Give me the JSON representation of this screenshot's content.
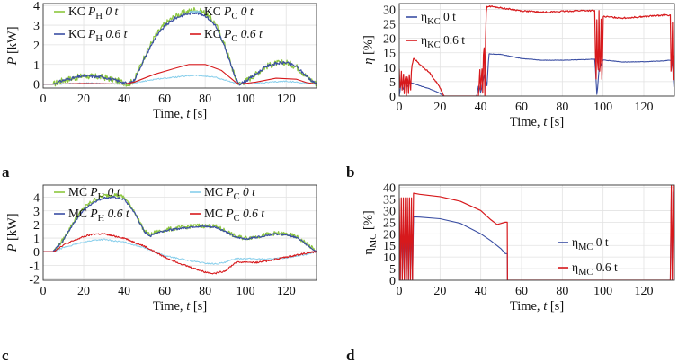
{
  "panels": [
    "a",
    "b",
    "c",
    "d"
  ],
  "chart_data": [
    {
      "id": "a",
      "type": "line",
      "title": "",
      "xlabel": "Time, t [s]",
      "ylabel": "P [kW]",
      "xlim": [
        0,
        135
      ],
      "ylim": [
        -0.2,
        4.1
      ],
      "xticks": [
        0,
        20,
        40,
        60,
        80,
        100,
        120
      ],
      "yticks": [
        0,
        1,
        2,
        3,
        4
      ],
      "grid": true,
      "legend_position": "top",
      "series": [
        {
          "name": "P_H 0 t",
          "legend": {
            "pre": "KC P",
            "sub": "H",
            "post": " 0 t"
          },
          "color": "#8cc63e",
          "width": 1.2,
          "noise": 0.16,
          "x": [
            0,
            5,
            10,
            20,
            30,
            40,
            42,
            45,
            50,
            55,
            60,
            65,
            70,
            75,
            80,
            85,
            90,
            95,
            97,
            100,
            105,
            110,
            115,
            120,
            125,
            130,
            135
          ],
          "y": [
            0,
            0,
            0.2,
            0.42,
            0.35,
            0.08,
            0,
            0.2,
            1.4,
            2.4,
            3.05,
            3.45,
            3.65,
            3.8,
            3.62,
            3.1,
            1.9,
            0.3,
            0,
            0.15,
            0.5,
            0.9,
            1.05,
            1.1,
            0.9,
            0.4,
            0
          ]
        },
        {
          "name": "P_C 0 t",
          "legend": {
            "pre": "KC P",
            "sub": "C",
            "post": " 0 t"
          },
          "color": "#87ceeb",
          "width": 1.0,
          "noise": 0.03,
          "x": [
            0,
            5,
            20,
            40,
            45,
            55,
            65,
            75,
            85,
            95,
            100,
            110,
            120,
            130,
            135
          ],
          "y": [
            0,
            0,
            0.05,
            0,
            0.05,
            0.25,
            0.35,
            0.45,
            0.35,
            0.05,
            0,
            0.08,
            0.15,
            0.05,
            0
          ]
        },
        {
          "name": "P_H 0.6 t",
          "legend": {
            "pre": "KC P",
            "sub": "H",
            "post": " 0.6 t"
          },
          "color": "#3a4ea3",
          "width": 1.2,
          "noise": 0.07,
          "x": [
            0,
            5,
            10,
            20,
            30,
            40,
            42,
            45,
            50,
            55,
            60,
            65,
            70,
            75,
            80,
            85,
            90,
            95,
            97,
            100,
            105,
            110,
            115,
            120,
            125,
            130,
            135
          ],
          "y": [
            0,
            0,
            0.2,
            0.42,
            0.35,
            0.08,
            0,
            0.2,
            1.3,
            2.3,
            2.95,
            3.35,
            3.55,
            3.65,
            3.5,
            3.0,
            1.8,
            0.3,
            0,
            0.15,
            0.5,
            0.9,
            1.05,
            1.1,
            0.9,
            0.4,
            0
          ]
        },
        {
          "name": "P_C 0.6 t",
          "legend": {
            "pre": "KC P",
            "sub": "C",
            "post": " 0.6 t"
          },
          "color": "#d7191c",
          "width": 1.1,
          "noise": 0,
          "x": [
            0,
            5,
            20,
            40,
            45,
            55,
            65,
            72,
            80,
            88,
            95,
            97,
            105,
            115,
            125,
            130,
            135
          ],
          "y": [
            0,
            0,
            0.03,
            0,
            0.1,
            0.5,
            0.8,
            1.0,
            1.0,
            0.7,
            0.1,
            0,
            0.1,
            0.3,
            0.25,
            0.08,
            0
          ]
        }
      ]
    },
    {
      "id": "b",
      "type": "line",
      "title": "",
      "xlabel": "Time, t [s]",
      "ylabel": "η [%]",
      "xlim": [
        0,
        135
      ],
      "ylim": [
        0,
        32
      ],
      "xticks": [
        0,
        20,
        40,
        60,
        80,
        100,
        120
      ],
      "yticks": [
        0,
        5,
        10,
        15,
        20,
        25,
        30
      ],
      "grid": true,
      "legend_position": "top-left",
      "series": [
        {
          "name": "η_KC 0 t",
          "legend": {
            "pre": "η",
            "sub": "KC",
            "post": " 0 t"
          },
          "color": "#3a4ea3",
          "width": 1.1,
          "noise": 0.08,
          "x": [
            0,
            1,
            2,
            3,
            4,
            5,
            6,
            7,
            10,
            15,
            20,
            21,
            22,
            22.1,
            38,
            39,
            40,
            41,
            42,
            43,
            44,
            50,
            60,
            70,
            80,
            90,
            96,
            97,
            98,
            99,
            100,
            110,
            120,
            130,
            134,
            135
          ],
          "y": [
            0,
            5,
            2,
            6,
            3,
            5,
            4.5,
            4.4,
            3.6,
            2.5,
            1,
            0.3,
            0,
            0,
            0,
            4,
            1,
            5,
            8,
            3,
            14.6,
            14.4,
            13,
            12.4,
            12.4,
            12.6,
            12.8,
            0,
            9,
            11,
            12.5,
            11.8,
            11.9,
            12.2,
            12.5,
            0
          ]
        },
        {
          "name": "η_KC 0.6 t",
          "legend": {
            "pre": "η",
            "sub": "KC",
            "post": " 0.6 t"
          },
          "color": "#d7191c",
          "width": 1.2,
          "noise": 0.25,
          "x": [
            0,
            0.5,
            1,
            1.5,
            2,
            2.5,
            3,
            3.5,
            4,
            4.5,
            5,
            5.5,
            6,
            7,
            8,
            10,
            15,
            20,
            22,
            22.1,
            39,
            39.5,
            40,
            40.5,
            41,
            41.5,
            42,
            42.5,
            43,
            45,
            50,
            60,
            70,
            80,
            90,
            96,
            96.5,
            97,
            97.5,
            98,
            98.5,
            99,
            99.5,
            100,
            110,
            120,
            130,
            133,
            133.5,
            134,
            134.5,
            135
          ],
          "y": [
            9.5,
            0,
            9.5,
            0,
            9.5,
            0,
            9.5,
            0,
            9.5,
            0,
            9.5,
            0,
            9.5,
            13,
            12.5,
            11,
            8,
            3,
            0,
            0,
            0,
            10,
            0,
            12,
            0,
            24,
            0,
            28,
            31,
            31,
            30.5,
            29.5,
            29,
            29.3,
            29.6,
            29.5,
            0,
            29.5,
            0,
            29.5,
            0,
            29.5,
            0,
            27.5,
            27,
            27.5,
            28,
            28,
            0,
            28,
            0,
            28
          ]
        }
      ]
    },
    {
      "id": "c",
      "type": "line",
      "title": "",
      "xlabel": "Time, t [s]",
      "ylabel": "P [kW]",
      "xlim": [
        0,
        135
      ],
      "ylim": [
        -2.1,
        4.9
      ],
      "xticks": [
        0,
        20,
        40,
        60,
        80,
        100,
        120
      ],
      "yticks": [
        -2,
        -1,
        0,
        1,
        2,
        3,
        4
      ],
      "grid": true,
      "legend_position": "top",
      "series": [
        {
          "name": "P_H 0 t",
          "legend": {
            "pre": "MC P",
            "sub": "H",
            "post": " 0 t"
          },
          "color": "#8cc63e",
          "width": 1.2,
          "noise": 0.16,
          "x": [
            0,
            5,
            10,
            15,
            20,
            25,
            30,
            35,
            40,
            45,
            50,
            53,
            55,
            60,
            65,
            70,
            75,
            80,
            85,
            90,
            95,
            100,
            105,
            110,
            115,
            120,
            125,
            130,
            135
          ],
          "y": [
            0,
            0,
            0.9,
            2.2,
            3.2,
            3.8,
            4.1,
            4.2,
            4.0,
            3.0,
            1.5,
            1.2,
            1.4,
            1.6,
            1.7,
            1.8,
            1.9,
            1.9,
            1.85,
            1.55,
            1.1,
            1.0,
            1.1,
            1.25,
            1.35,
            1.3,
            1.1,
            0.6,
            0
          ]
        },
        {
          "name": "P_C 0 t",
          "legend": {
            "pre": "MC P",
            "sub": "C",
            "post": " 0 t"
          },
          "color": "#87ceeb",
          "width": 1.0,
          "noise": 0.05,
          "x": [
            0,
            5,
            10,
            20,
            25,
            30,
            40,
            50,
            55,
            60,
            70,
            80,
            85,
            90,
            95,
            100,
            110,
            120,
            130,
            135
          ],
          "y": [
            0,
            0,
            0.3,
            0.7,
            0.85,
            0.9,
            0.7,
            0.3,
            0,
            -0.3,
            -0.6,
            -0.85,
            -0.9,
            -0.8,
            -0.5,
            -0.5,
            -0.55,
            -0.45,
            -0.2,
            0
          ]
        },
        {
          "name": "P_H 0.6 t",
          "legend": {
            "pre": "MC P",
            "sub": "H",
            "post": " 0.6 t"
          },
          "color": "#3a4ea3",
          "width": 1.2,
          "noise": 0.07,
          "x": [
            0,
            5,
            10,
            15,
            20,
            25,
            30,
            35,
            40,
            45,
            50,
            53,
            55,
            60,
            65,
            70,
            75,
            80,
            85,
            90,
            95,
            100,
            105,
            110,
            115,
            120,
            125,
            130,
            135
          ],
          "y": [
            0,
            0,
            0.85,
            2.1,
            3.05,
            3.65,
            3.95,
            4.0,
            3.85,
            2.9,
            1.45,
            1.15,
            1.35,
            1.55,
            1.65,
            1.75,
            1.85,
            1.85,
            1.8,
            1.5,
            1.05,
            0.95,
            1.05,
            1.2,
            1.3,
            1.25,
            1.05,
            0.55,
            0
          ]
        },
        {
          "name": "P_C 0.6 t",
          "legend": {
            "pre": "MC P",
            "sub": "C",
            "post": " 0.6 t"
          },
          "color": "#d7191c",
          "width": 1.1,
          "noise": 0.06,
          "x": [
            0,
            5,
            10,
            20,
            25,
            30,
            40,
            50,
            55,
            60,
            70,
            80,
            85,
            90,
            95,
            100,
            105,
            110,
            120,
            130,
            135
          ],
          "y": [
            0,
            0,
            0.5,
            1.1,
            1.3,
            1.3,
            1.0,
            0.4,
            0,
            -0.4,
            -1.0,
            -1.5,
            -1.6,
            -1.4,
            -0.8,
            -0.75,
            -0.8,
            -0.7,
            -0.4,
            -0.1,
            0
          ]
        }
      ]
    },
    {
      "id": "d",
      "type": "line",
      "title": "",
      "xlabel": "Time, t [s]",
      "ylabel": "η_MC [%]",
      "xlim": [
        0,
        135
      ],
      "ylim": [
        0,
        41
      ],
      "xticks": [
        0,
        20,
        40,
        60,
        80,
        100,
        120
      ],
      "yticks": [
        0,
        5,
        10,
        15,
        20,
        25,
        30,
        35,
        40
      ],
      "grid": true,
      "legend_position": "right",
      "series": [
        {
          "name": "η_MC 0 t",
          "legend": {
            "pre": "η",
            "sub": "MC",
            "post": " 0 t"
          },
          "color": "#3a4ea3",
          "width": 1.1,
          "noise": 0,
          "x": [
            0,
            0.5,
            1,
            1.5,
            2,
            2.5,
            3,
            3.5,
            4,
            4.5,
            5,
            5.5,
            6,
            6.5,
            7,
            10,
            20,
            30,
            40,
            45,
            50,
            52,
            53,
            53.1,
            133,
            133.5,
            134,
            134.5,
            135
          ],
          "y": [
            27,
            0,
            27,
            0,
            27,
            0,
            27,
            0,
            27,
            0,
            27,
            0,
            27,
            0,
            27.3,
            27.2,
            26.5,
            24.5,
            20,
            17,
            13.5,
            11.5,
            11.5,
            0,
            0,
            38,
            0,
            38,
            0
          ]
        },
        {
          "name": "η_MC 0.6 t",
          "legend": {
            "pre": "η",
            "sub": "MC",
            "post": " 0.6 t"
          },
          "color": "#d7191c",
          "width": 1.2,
          "noise": 0,
          "x": [
            0,
            0.5,
            1,
            1.5,
            2,
            2.5,
            3,
            3.5,
            4,
            4.5,
            5,
            5.5,
            6,
            6.5,
            7,
            10,
            20,
            30,
            40,
            45,
            48,
            50,
            52,
            53,
            53.1,
            133,
            133.5,
            134,
            134.5,
            135
          ],
          "y": [
            35.5,
            0,
            35.5,
            0,
            35.5,
            0,
            35.5,
            0,
            35.5,
            0,
            35.5,
            0,
            35.5,
            0,
            37.5,
            37,
            36,
            34,
            30,
            26,
            24,
            24.5,
            25,
            25,
            0,
            0,
            41,
            0,
            41,
            0
          ]
        }
      ]
    }
  ]
}
